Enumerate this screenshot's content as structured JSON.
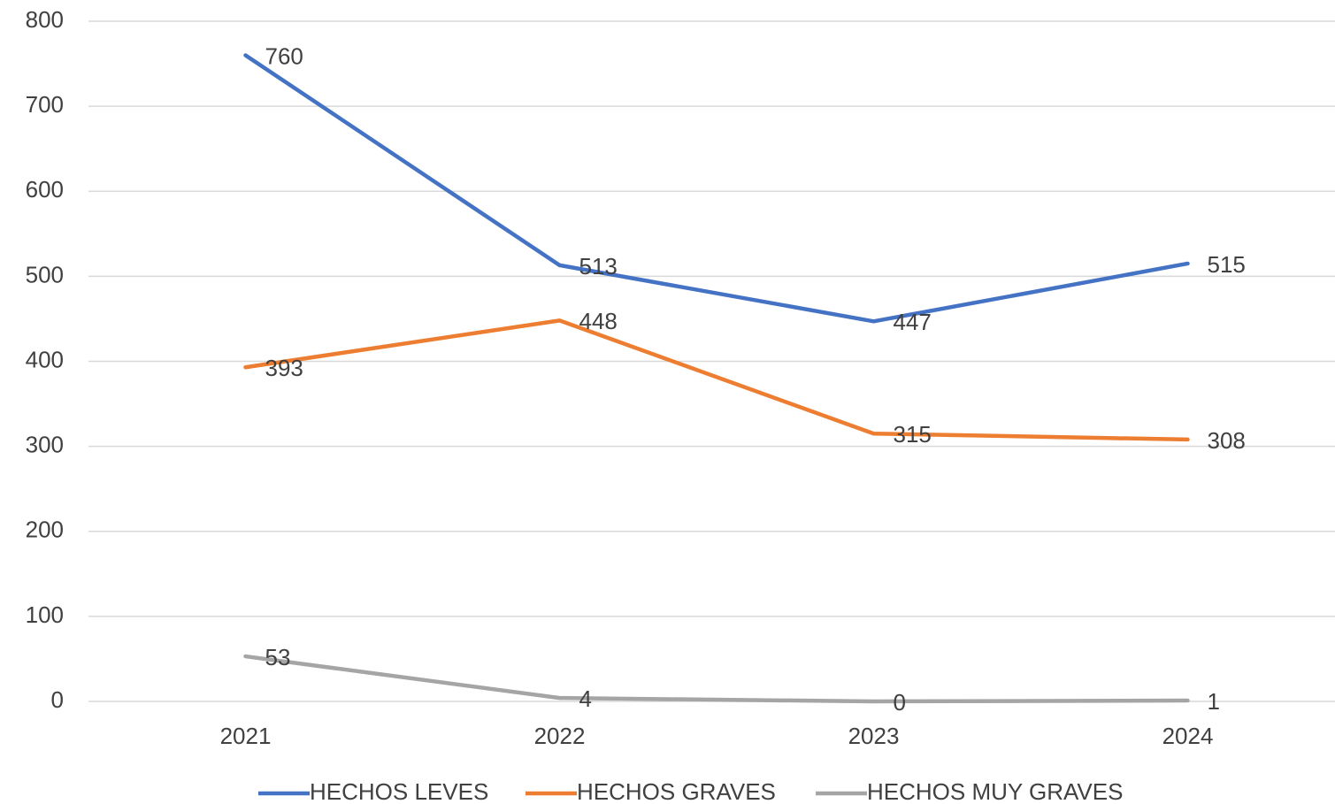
{
  "chart_data": {
    "type": "line",
    "categories": [
      "2021",
      "2022",
      "2023",
      "2024"
    ],
    "series": [
      {
        "name": "HECHOS LEVES",
        "color": "#4472c4",
        "values": [
          760,
          513,
          447,
          515
        ]
      },
      {
        "name": "HECHOS GRAVES",
        "color": "#ed7d31",
        "values": [
          393,
          448,
          315,
          308
        ]
      },
      {
        "name": "HECHOS MUY GRAVES",
        "color": "#a5a5a5",
        "values": [
          53,
          4,
          0,
          1
        ]
      }
    ],
    "ylim": [
      0,
      800
    ],
    "yticks": [
      0,
      100,
      200,
      300,
      400,
      500,
      600,
      700,
      800
    ],
    "grid": true,
    "legend": "bottom"
  }
}
